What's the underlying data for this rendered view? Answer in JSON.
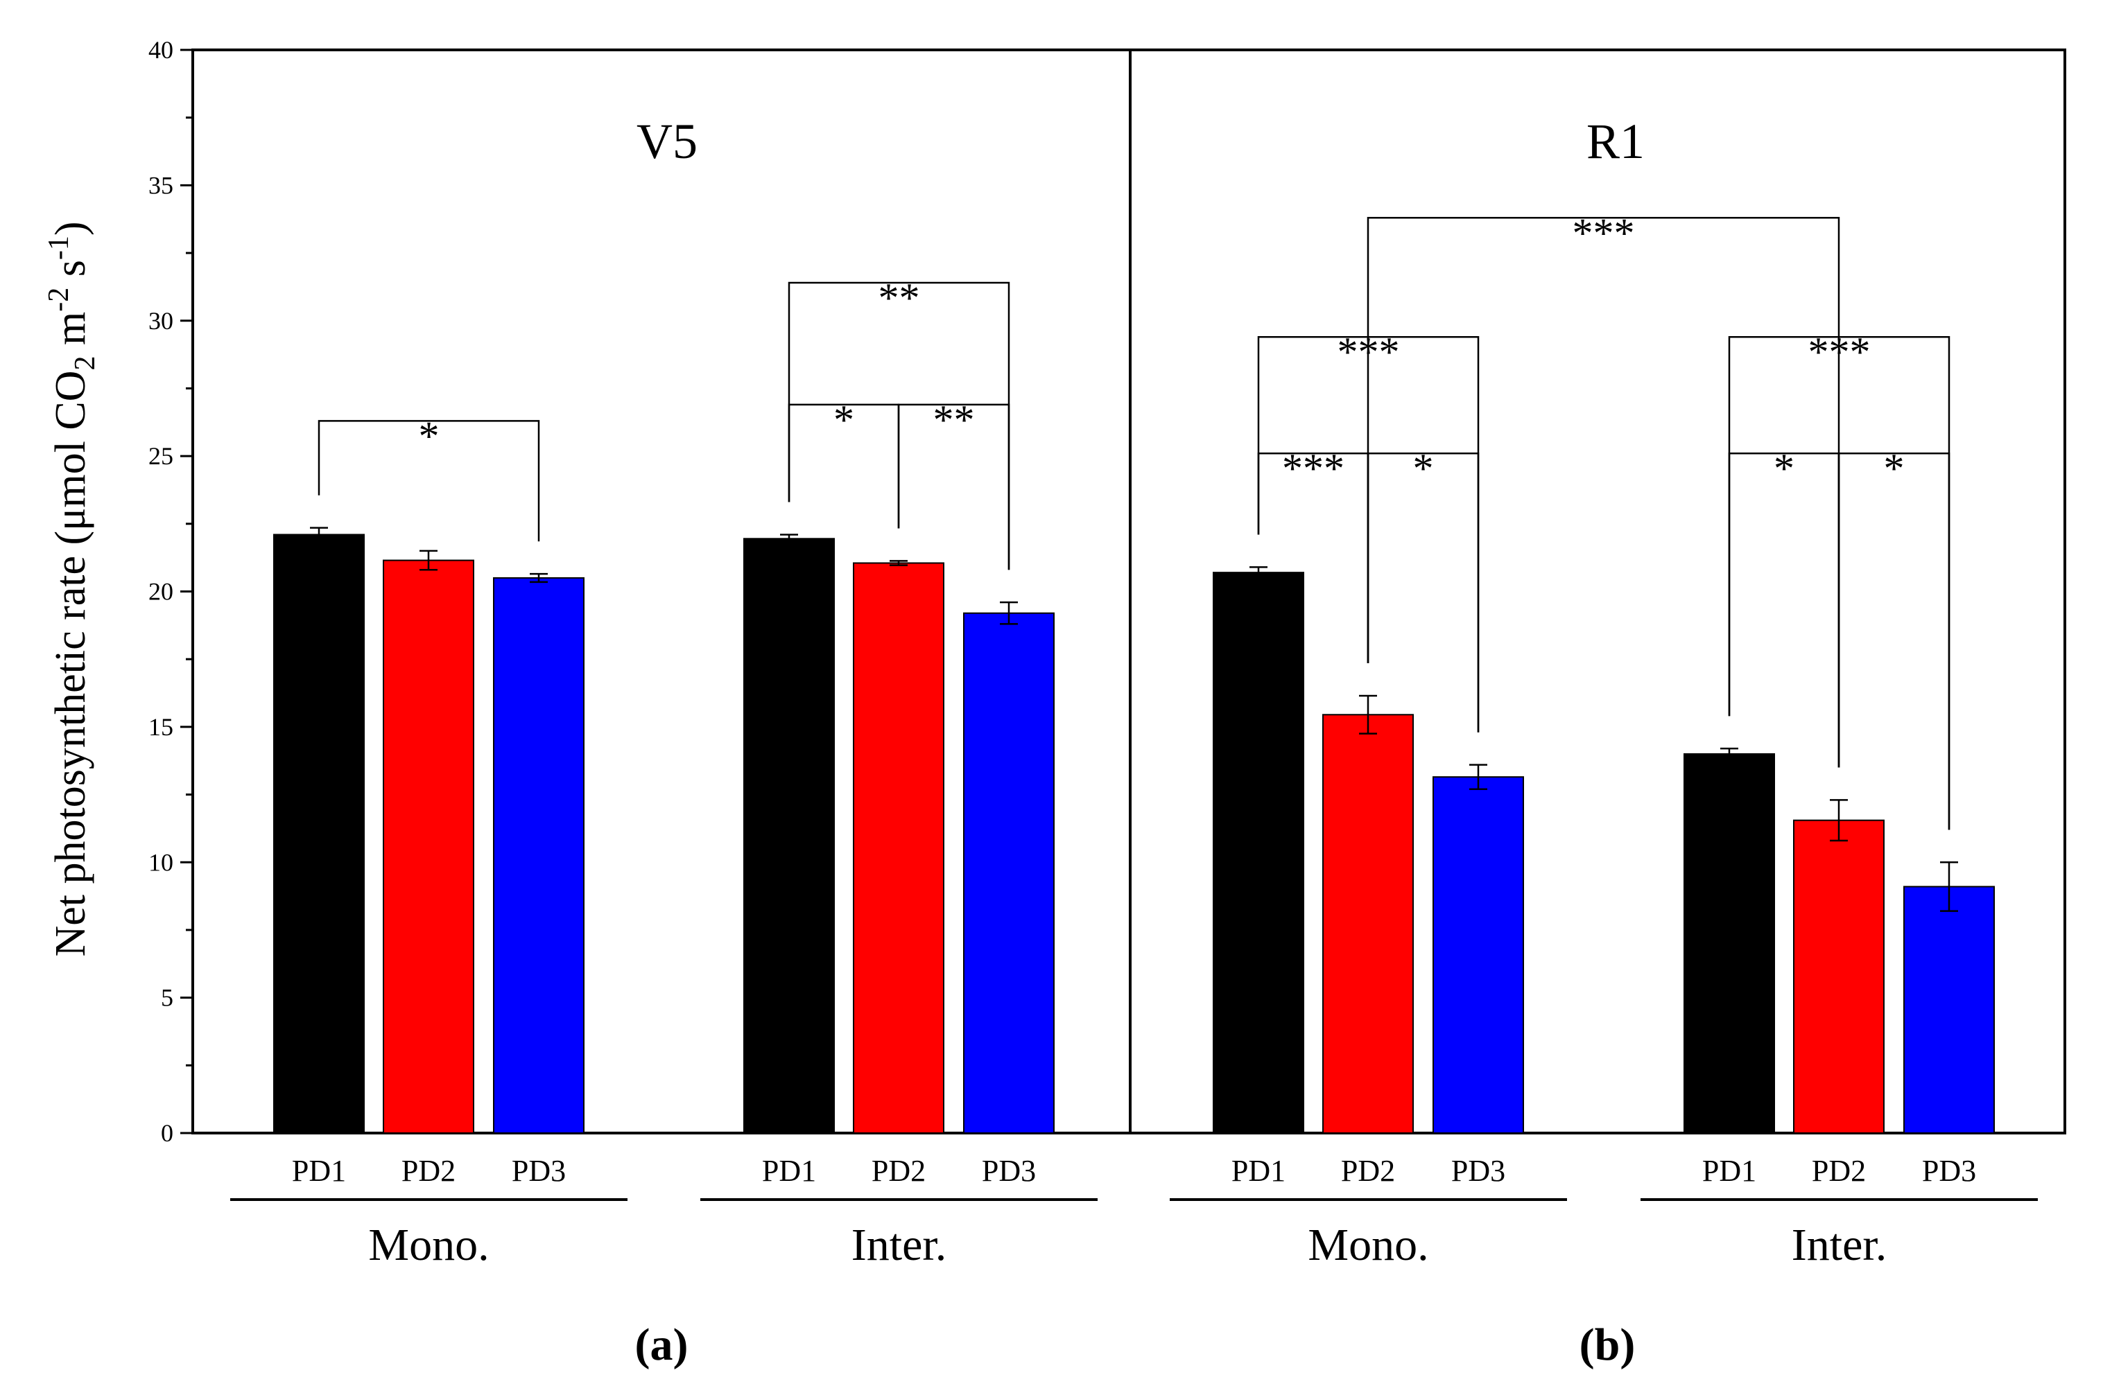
{
  "chart_data": {
    "type": "bar",
    "ylabel": {
      "text": "Net photosynthetic rate (μmol CO2 m-2 s-1)",
      "prefix": "Net photosynthetic rate (μmol CO",
      "co2_subscript": "2",
      "unit_m": " m",
      "m_exponent": "-2",
      "unit_s": " s",
      "s_exponent": "-1",
      "suffix": ")"
    },
    "ylim": [
      0,
      40
    ],
    "yticks": [
      0,
      5,
      10,
      15,
      20,
      25,
      30,
      35,
      40
    ],
    "categories": [
      "PD1",
      "PD2",
      "PD3"
    ],
    "colors": {
      "PD1": "#000000",
      "PD2": "#ff0000",
      "PD3": "#0000ff"
    },
    "panels": [
      {
        "panel_label": "(a)",
        "stage": "V5",
        "groups": [
          {
            "name": "Mono.",
            "values": [
              22.1,
              21.15,
              20.5
            ],
            "errors": [
              0.25,
              0.35,
              0.15
            ]
          },
          {
            "name": "Inter.",
            "values": [
              21.95,
              21.05,
              19.2
            ],
            "errors": [
              0.15,
              0.08,
              0.4
            ]
          }
        ]
      },
      {
        "panel_label": "(b)",
        "stage": "R1",
        "groups": [
          {
            "name": "Mono.",
            "values": [
              20.7,
              15.45,
              13.15
            ],
            "errors": [
              0.2,
              0.7,
              0.45
            ]
          },
          {
            "name": "Inter.",
            "values": [
              14.0,
              11.55,
              9.1
            ],
            "errors": [
              0.2,
              0.75,
              0.9
            ]
          }
        ]
      }
    ],
    "significance": [
      {
        "panel": 0,
        "from": [
          0,
          0
        ],
        "to": [
          0,
          2
        ],
        "label": "*",
        "level": 26.3
      },
      {
        "panel": 0,
        "from": [
          1,
          0
        ],
        "to": [
          1,
          2
        ],
        "label": "**",
        "level": 31.4
      },
      {
        "panel": 0,
        "from": [
          1,
          0
        ],
        "to": [
          1,
          1
        ],
        "label": "*",
        "level": 26.9
      },
      {
        "panel": 0,
        "from": [
          1,
          1
        ],
        "to": [
          1,
          2
        ],
        "label": "**",
        "level": 26.9
      },
      {
        "panel": 1,
        "from": [
          0,
          1
        ],
        "to": [
          1,
          1
        ],
        "label": "***",
        "level": 33.8
      },
      {
        "panel": 1,
        "from": [
          0,
          0
        ],
        "to": [
          0,
          2
        ],
        "label": "***",
        "level": 29.4
      },
      {
        "panel": 1,
        "from": [
          0,
          0
        ],
        "to": [
          0,
          1
        ],
        "label": "***",
        "level": 25.1
      },
      {
        "panel": 1,
        "from": [
          0,
          1
        ],
        "to": [
          0,
          2
        ],
        "label": "*",
        "level": 25.1
      },
      {
        "panel": 1,
        "from": [
          1,
          0
        ],
        "to": [
          1,
          2
        ],
        "label": "***",
        "level": 29.4
      },
      {
        "panel": 1,
        "from": [
          1,
          0
        ],
        "to": [
          1,
          1
        ],
        "label": "*",
        "level": 25.1
      },
      {
        "panel": 1,
        "from": [
          1,
          1
        ],
        "to": [
          1,
          2
        ],
        "label": "*",
        "level": 25.1
      }
    ]
  }
}
